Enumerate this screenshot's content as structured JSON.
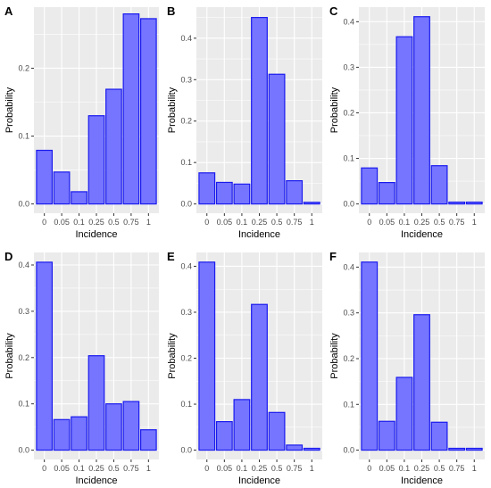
{
  "figure": {
    "bar_fill": "#7575ff",
    "bar_stroke": "#1a1aee",
    "panel_bg": "#ebebeb",
    "grid_color": "#ffffff",
    "tick_color": "#4d4d4d"
  },
  "chart_data": [
    {
      "panel": "A",
      "type": "bar",
      "xlabel": "Incidence",
      "ylabel": "Probability",
      "categories": [
        "0",
        "0.05",
        "0.1",
        "0.25",
        "0.5",
        "0.75",
        "1"
      ],
      "values": [
        0.079,
        0.047,
        0.018,
        0.13,
        0.169,
        0.28,
        0.273
      ],
      "ylim": [
        0,
        0.29
      ],
      "yticks": [
        "0.0",
        "0.1",
        "0.2"
      ],
      "grid": true
    },
    {
      "panel": "B",
      "type": "bar",
      "xlabel": "Incidence",
      "ylabel": "Probability",
      "categories": [
        "0",
        "0.05",
        "0.1",
        "0.25",
        "0.5",
        "0.75",
        "1"
      ],
      "values": [
        0.075,
        0.052,
        0.048,
        0.45,
        0.313,
        0.056,
        0.004
      ],
      "ylim": [
        0,
        0.475
      ],
      "yticks": [
        "0.0",
        "0.1",
        "0.2",
        "0.3",
        "0.4"
      ],
      "grid": true
    },
    {
      "panel": "C",
      "type": "bar",
      "xlabel": "Incidence",
      "ylabel": "Probability",
      "categories": [
        "0",
        "0.05",
        "0.1",
        "0.25",
        "0.5",
        "0.75",
        "1"
      ],
      "values": [
        0.079,
        0.047,
        0.367,
        0.411,
        0.084,
        0.004,
        0.004
      ],
      "ylim": [
        0,
        0.432
      ],
      "yticks": [
        "0.0",
        "0.1",
        "0.2",
        "0.3",
        "0.4"
      ],
      "grid": true
    },
    {
      "panel": "D",
      "type": "bar",
      "xlabel": "Incidence",
      "ylabel": "Probability",
      "categories": [
        "0",
        "0.05",
        "0.1",
        "0.25",
        "0.5",
        "0.75",
        "1"
      ],
      "values": [
        0.406,
        0.066,
        0.072,
        0.204,
        0.1,
        0.105,
        0.044
      ],
      "ylim": [
        0,
        0.427
      ],
      "yticks": [
        "0.0",
        "0.1",
        "0.2",
        "0.3",
        "0.4"
      ],
      "grid": true
    },
    {
      "panel": "E",
      "type": "bar",
      "xlabel": "Incidence",
      "ylabel": "Probability",
      "categories": [
        "0",
        "0.05",
        "0.1",
        "0.25",
        "0.5",
        "0.75",
        "1"
      ],
      "values": [
        0.409,
        0.062,
        0.11,
        0.317,
        0.082,
        0.011,
        0.004
      ],
      "ylim": [
        0,
        0.43
      ],
      "yticks": [
        "0.0",
        "0.1",
        "0.2",
        "0.3",
        "0.4"
      ],
      "grid": true
    },
    {
      "panel": "F",
      "type": "bar",
      "xlabel": "Incidence",
      "ylabel": "Probability",
      "categories": [
        "0",
        "0.05",
        "0.1",
        "0.25",
        "0.5",
        "0.75",
        "1"
      ],
      "values": [
        0.411,
        0.063,
        0.159,
        0.296,
        0.061,
        0.004,
        0.004
      ],
      "ylim": [
        0,
        0.432
      ],
      "yticks": [
        "0.0",
        "0.1",
        "0.2",
        "0.3",
        "0.4"
      ],
      "grid": true
    }
  ]
}
